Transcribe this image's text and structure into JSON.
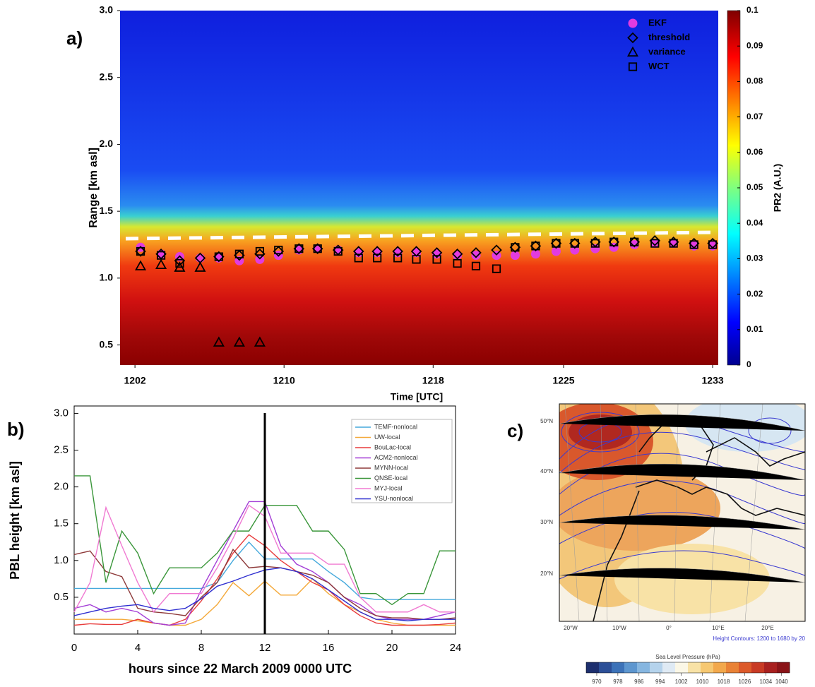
{
  "chart_data": [
    {
      "type": "scatter",
      "label": "a)",
      "xlabel": "Time [UTC]",
      "ylabel": "Range [km asl]",
      "x": [
        1202.3,
        1203.4,
        1204.4,
        1205.5,
        1206.5,
        1207.6,
        1208.7,
        1209.7,
        1210.8,
        1211.8,
        1212.9,
        1214.0,
        1215.0,
        1216.1,
        1217.1,
        1218.2,
        1219.3,
        1220.3,
        1221.4,
        1222.4,
        1223.5,
        1224.6,
        1225.6,
        1226.7,
        1227.7,
        1228.8,
        1229.9,
        1230.9,
        1232.0,
        1233.0
      ],
      "xlim": [
        1201.2,
        1233.3
      ],
      "xticks": [
        1202,
        1210,
        1218,
        1225,
        1233
      ],
      "ylim": [
        0.35,
        3.0
      ],
      "yticks": [
        0.5,
        {
          "value": 1,
          "label": "1.0"
        },
        1.5,
        {
          "value": 2,
          "label": "2.0"
        },
        2.5,
        {
          "value": 3,
          "label": "3.0"
        }
      ],
      "legend": "upper right",
      "series": [
        {
          "name": "EKF",
          "marker": "circle",
          "color": "#e23be0",
          "values": [
            1.23,
            1.18,
            1.16,
            1.15,
            1.15,
            1.13,
            1.14,
            1.17,
            1.21,
            1.22,
            1.21,
            1.19,
            1.19,
            1.19,
            1.19,
            1.18,
            1.17,
            1.17,
            1.17,
            1.17,
            1.18,
            1.2,
            1.21,
            1.22,
            1.23,
            1.25,
            1.26,
            1.26,
            1.24,
            1.24
          ]
        },
        {
          "name": "threshold",
          "marker": "diamond",
          "color": "#000000",
          "values": [
            1.2,
            1.18,
            1.13,
            1.15,
            1.16,
            1.17,
            1.18,
            1.2,
            1.22,
            1.22,
            1.21,
            1.2,
            1.2,
            1.2,
            1.2,
            1.19,
            1.18,
            1.19,
            1.21,
            1.23,
            1.24,
            1.26,
            1.26,
            1.27,
            1.27,
            1.27,
            1.28,
            1.27,
            1.26,
            1.26
          ]
        },
        {
          "name": "variance",
          "marker": "triangle",
          "color": "#000000",
          "values": [
            1.09,
            1.1,
            1.08,
            1.08,
            0.52,
            0.52,
            0.52,
            null,
            null,
            null,
            null,
            null,
            null,
            null,
            null,
            null,
            null,
            null,
            null,
            null,
            null,
            null,
            null,
            null,
            null,
            null,
            null,
            null,
            null,
            null
          ]
        },
        {
          "name": "WCT",
          "marker": "square",
          "color": "#000000",
          "values": [
            1.2,
            1.17,
            1.11,
            null,
            1.16,
            1.18,
            1.2,
            1.21,
            1.22,
            1.22,
            1.2,
            1.15,
            1.15,
            1.15,
            1.14,
            1.14,
            1.11,
            1.09,
            1.07,
            1.23,
            1.24,
            1.26,
            1.26,
            1.26,
            1.27,
            1.27,
            1.26,
            1.26,
            1.25,
            1.25
          ]
        }
      ],
      "colorbar": {
        "label": "PR2 (A.U.)",
        "lim": [
          0,
          0.1
        ],
        "ticks": [
          0,
          0.01,
          0.02,
          0.03,
          0.04,
          0.05,
          0.06,
          0.07,
          0.08,
          0.09,
          0.1
        ]
      }
    },
    {
      "type": "line",
      "label": "b)",
      "xlabel": "hours since 22 March 2009 0000 UTC",
      "ylabel": "PBL height [km asl]",
      "x": [
        0,
        1,
        2,
        3,
        4,
        5,
        6,
        7,
        8,
        9,
        10,
        11,
        12,
        13,
        14,
        15,
        16,
        17,
        18,
        19,
        20,
        21,
        22,
        23,
        24
      ],
      "xlim": [
        0,
        24
      ],
      "xticks": [
        0,
        4,
        8,
        12,
        16,
        20,
        24
      ],
      "ylim": [
        0,
        3.1
      ],
      "yticks": [
        0.5,
        {
          "value": 1,
          "label": "1.0"
        },
        1.5,
        {
          "value": 2,
          "label": "2.0"
        },
        2.5,
        {
          "value": 3,
          "label": "3.0"
        }
      ],
      "vline": 12,
      "legend": "upper right",
      "series": [
        {
          "name": "TEMF-nonlocal",
          "color": "#45a9dc",
          "values": [
            0.62,
            0.62,
            0.62,
            0.62,
            0.62,
            0.62,
            0.62,
            0.62,
            0.62,
            0.7,
            1.0,
            1.25,
            1.02,
            1.02,
            1.02,
            1.02,
            0.85,
            0.7,
            0.5,
            0.47,
            0.47,
            0.47,
            0.47,
            0.47,
            0.47
          ]
        },
        {
          "name": "UW-local",
          "color": "#f4a93a",
          "values": [
            0.2,
            0.2,
            0.2,
            0.2,
            0.18,
            0.15,
            0.12,
            0.12,
            0.2,
            0.4,
            0.7,
            0.52,
            0.72,
            0.53,
            0.53,
            0.75,
            0.55,
            0.4,
            0.3,
            0.2,
            0.15,
            0.12,
            0.12,
            0.12,
            0.12
          ]
        },
        {
          "name": "BouLac-local",
          "color": "#e83c3c",
          "values": [
            0.12,
            0.14,
            0.13,
            0.13,
            0.2,
            0.15,
            0.12,
            0.2,
            0.45,
            0.75,
            1.1,
            1.35,
            1.2,
            1.0,
            0.85,
            0.7,
            0.6,
            0.4,
            0.25,
            0.15,
            0.12,
            0.12,
            0.12,
            0.13,
            0.15
          ]
        },
        {
          "name": "ACM2-nonlocal",
          "color": "#a43fd6",
          "values": [
            0.35,
            0.4,
            0.3,
            0.35,
            0.3,
            0.15,
            0.12,
            0.15,
            0.6,
            1.0,
            1.4,
            1.8,
            1.8,
            1.2,
            0.95,
            0.85,
            0.7,
            0.5,
            0.4,
            0.25,
            0.2,
            0.2,
            0.2,
            0.25,
            0.3
          ]
        },
        {
          "name": "MYNN-local",
          "color": "#8e3a3a",
          "values": [
            1.08,
            1.13,
            0.85,
            0.78,
            0.35,
            0.3,
            0.28,
            0.25,
            0.5,
            0.7,
            1.15,
            0.9,
            0.92,
            0.9,
            0.85,
            0.8,
            0.7,
            0.5,
            0.35,
            0.25,
            0.22,
            0.22,
            0.2,
            0.2,
            0.22
          ]
        },
        {
          "name": "QNSE-local",
          "color": "#3a963a",
          "values": [
            2.15,
            2.15,
            0.7,
            1.4,
            1.1,
            0.55,
            0.9,
            0.9,
            0.9,
            1.1,
            1.4,
            1.4,
            1.75,
            1.75,
            1.75,
            1.4,
            1.4,
            1.15,
            0.55,
            0.55,
            0.4,
            0.55,
            0.55,
            1.13,
            1.13
          ]
        },
        {
          "name": "MYJ-local",
          "color": "#f07ad2",
          "values": [
            0.3,
            0.7,
            1.72,
            1.2,
            0.7,
            0.3,
            0.55,
            0.55,
            0.55,
            0.9,
            1.3,
            1.75,
            1.6,
            1.1,
            1.1,
            1.1,
            0.95,
            0.95,
            0.5,
            0.3,
            0.3,
            0.3,
            0.4,
            0.3,
            0.3
          ]
        },
        {
          "name": "YSU-nonlocal",
          "color": "#2f2fd0",
          "values": [
            0.25,
            0.3,
            0.35,
            0.38,
            0.4,
            0.35,
            0.32,
            0.35,
            0.48,
            0.65,
            0.72,
            0.8,
            0.87,
            0.9,
            0.85,
            0.75,
            0.6,
            0.45,
            0.3,
            0.2,
            0.2,
            0.18,
            0.2,
            0.2,
            0.2
          ]
        }
      ]
    },
    {
      "type": "map",
      "label": "c)",
      "lat_labels": [
        "50°N",
        "40°N",
        "30°N",
        "20°N"
      ],
      "lon_labels": [
        "20°W",
        "10°W",
        "0°",
        "10°E",
        "20°E"
      ],
      "note": "Height Contours: 1200 to 1680 by 20",
      "colorbar": {
        "title": "Sea Level Pressure (hPa)",
        "lim": [
          966,
          1043
        ],
        "ticks": [
          970,
          978,
          986,
          994,
          1002,
          1010,
          1018,
          1026,
          1034,
          1040
        ],
        "colors": [
          "#1d2f6e",
          "#2c4f97",
          "#3c72b8",
          "#5d96cf",
          "#86b6e0",
          "#b5d3ec",
          "#dfeaf4",
          "#fbf7e6",
          "#f8e2a6",
          "#f6c872",
          "#f2a84c",
          "#e98236",
          "#dc5a2a",
          "#c83a24",
          "#a8201f",
          "#8a1418"
        ]
      }
    }
  ]
}
